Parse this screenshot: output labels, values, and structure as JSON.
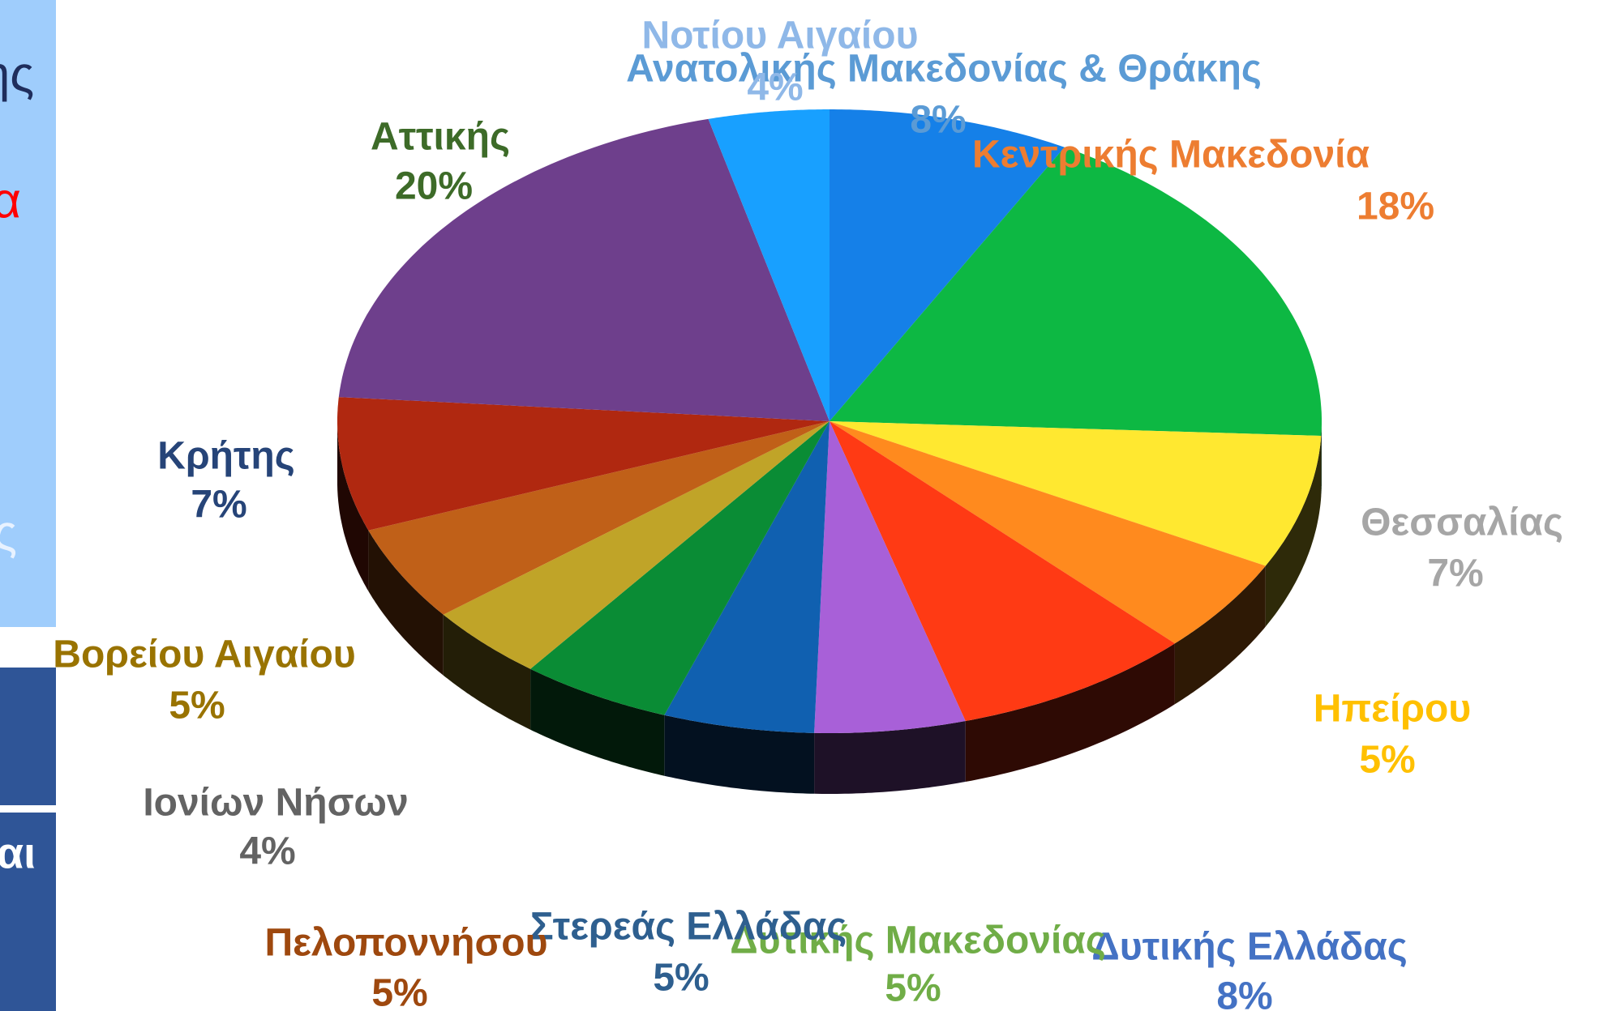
{
  "chart_data": {
    "type": "pie",
    "categories": [
      "Ανατολικής Μακεδονίας & Θράκης",
      "Κεντρικής Μακεδονία",
      "Θεσσαλίας",
      "Ηπείρου",
      "Δυτικής Ελλάδας",
      "Δυτικής Μακεδονίας",
      "Στερεάς Ελλάδας",
      "Πελοποννήσου",
      "Ιονίων Νήσων",
      "Βορείου Αιγαίου",
      "Κρήτης",
      "Αττικής",
      "Νοτίου Αιγαίου"
    ],
    "values": [
      8,
      18,
      7,
      5,
      8,
      5,
      5,
      5,
      4,
      5,
      7,
      20,
      4
    ],
    "value_labels": [
      "8%",
      "18%",
      "7%",
      "5%",
      "8%",
      "5%",
      "5%",
      "5%",
      "4%",
      "5%",
      "7%",
      "20%",
      "4%"
    ],
    "colors": [
      "#1580e8",
      "#0db843",
      "#ffe830",
      "#ff8a1e",
      "#ff3a14",
      "#a860d8",
      "#1060b0",
      "#0a8c35",
      "#c0a428",
      "#c06018",
      "#b02810",
      "#6e3f8c",
      "#18a0ff"
    ],
    "label_colors": [
      "#5b9bd5",
      "#ed7d31",
      "#a6a6a6",
      "#ffc000",
      "#4472c4",
      "#70ad47",
      "#2e5f8f",
      "#9e480e",
      "#636363",
      "#997300",
      "#264478",
      "#3d6b28",
      "#8fb8e8"
    ]
  },
  "side_fragments": [
    "ης",
    "α",
    "ς",
    "αι"
  ]
}
